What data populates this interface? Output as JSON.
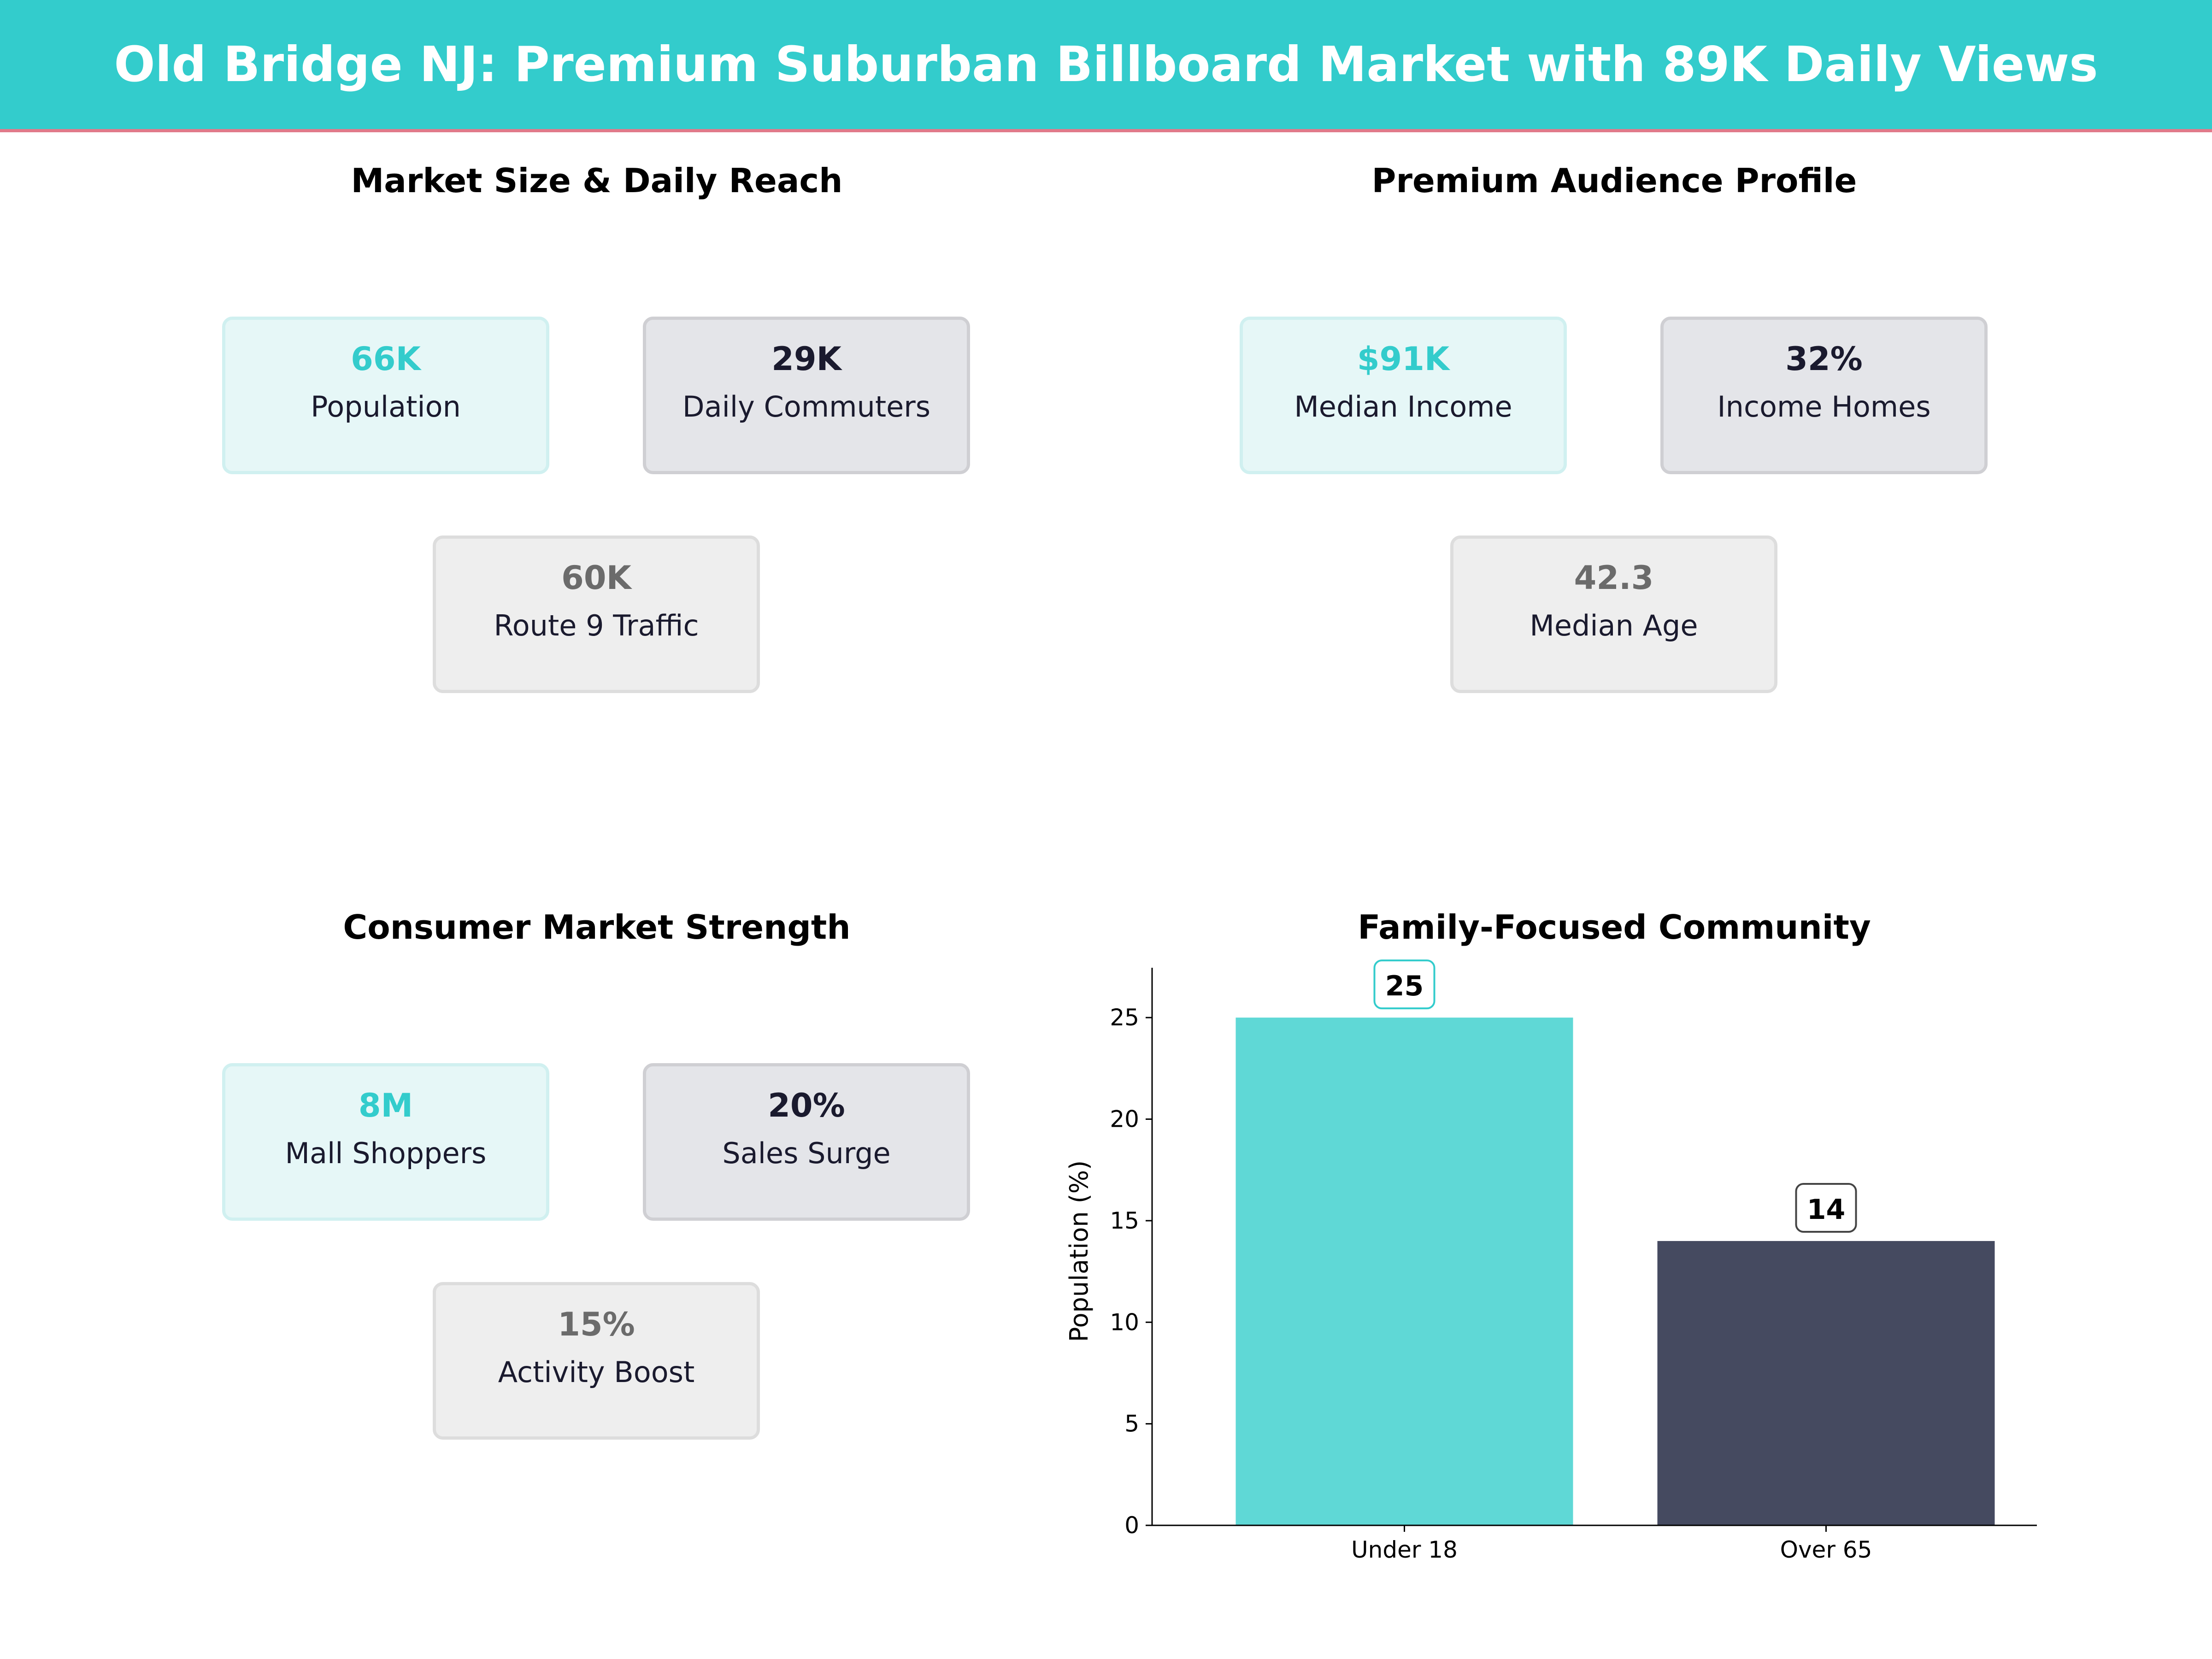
{
  "header": {
    "title": "Old Bridge NJ: Premium Suburban Billboard Market with 89K Daily Views"
  },
  "panels": [
    {
      "title": "Market Size & Daily Reach",
      "cards": [
        {
          "value": "66K",
          "label": "Population"
        },
        {
          "value": "29K",
          "label": "Daily Commuters"
        },
        {
          "value": "60K",
          "label": "Route 9 Traffic"
        }
      ]
    },
    {
      "title": "Premium Audience Profile",
      "cards": [
        {
          "value": "$91K",
          "label": "Median Income"
        },
        {
          "value": "32%",
          "label": "Income Homes"
        },
        {
          "value": "42.3",
          "label": "Median Age"
        }
      ]
    },
    {
      "title": "Consumer Market Strength",
      "cards": [
        {
          "value": "8M",
          "label": "Mall Shoppers"
        },
        {
          "value": "20%",
          "label": "Sales Surge"
        },
        {
          "value": "15%",
          "label": "Activity Boost"
        }
      ]
    }
  ],
  "colors": {
    "accent": "#33CCCC",
    "bar1": "#5FD8D6",
    "bar2": "#454A60",
    "dark": "#1A1A2E"
  },
  "chart_data": {
    "type": "bar",
    "title": "Family-Focused Community",
    "categories": [
      "Under 18",
      "Over 65"
    ],
    "values": [
      25,
      14
    ],
    "ylabel": "Population (%)",
    "xlabel": "",
    "ylim": [
      0,
      27
    ],
    "yticks": [
      0,
      5,
      10,
      15,
      20,
      25
    ],
    "grid": false,
    "data_labels": [
      "25",
      "14"
    ]
  }
}
